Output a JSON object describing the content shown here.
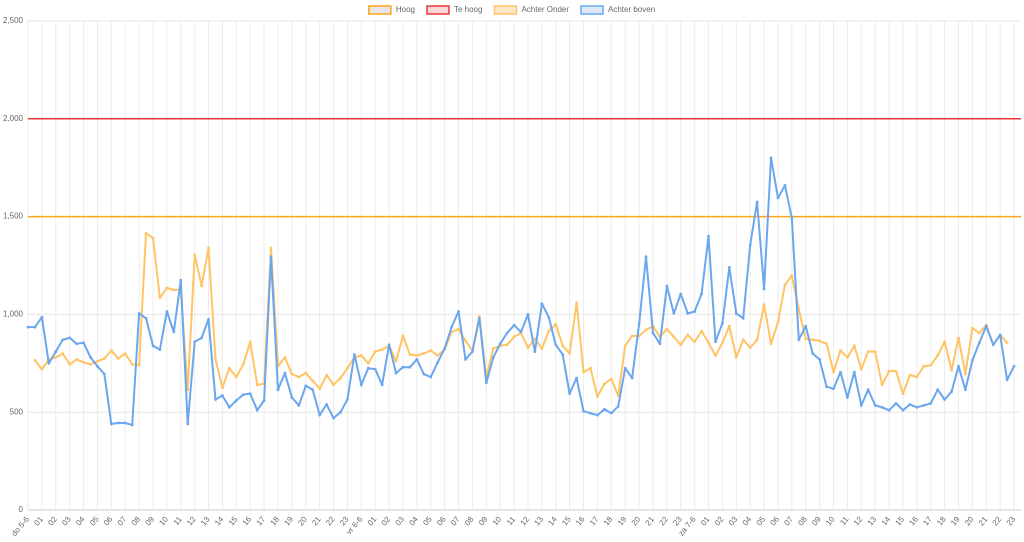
{
  "chart_data": {
    "type": "line",
    "legend": "top",
    "grid": true,
    "categories": [
      "do 5-6",
      null,
      "01",
      null,
      "02",
      null,
      "03",
      null,
      "04",
      null,
      "05",
      null,
      "06",
      null,
      "07",
      null,
      "08",
      null,
      "09",
      null,
      "10",
      null,
      "11",
      null,
      "12",
      null,
      "13",
      null,
      "14",
      null,
      "15",
      null,
      "16",
      null,
      "17",
      null,
      "18",
      null,
      "19",
      null,
      "20",
      null,
      "21",
      null,
      "22",
      null,
      "23",
      null,
      "vr 6-6",
      null,
      "01",
      null,
      "02",
      null,
      "03",
      null,
      "04",
      null,
      "05",
      null,
      "06",
      null,
      "07",
      null,
      "08",
      null,
      "09",
      null,
      "10",
      null,
      "11",
      null,
      "12",
      null,
      "13",
      null,
      "14",
      null,
      "15",
      null,
      "16",
      null,
      "17",
      null,
      "18",
      null,
      "19",
      null,
      "20",
      null,
      "21",
      null,
      "22",
      null,
      "23",
      null,
      "za 7-6",
      null,
      "01",
      null,
      "02",
      null,
      "03",
      null,
      "04",
      null,
      "05",
      null,
      "06",
      null,
      "07",
      null,
      "08",
      null,
      "09",
      null,
      "10",
      null,
      "11",
      null,
      "12",
      null,
      "13",
      null,
      "14",
      null,
      "15",
      null,
      "16",
      null,
      "17",
      null,
      "18",
      null,
      "19",
      null,
      "20",
      null,
      "21",
      null,
      "22",
      null,
      "23",
      null
    ],
    "thresholds": [
      {
        "name": "Hoog",
        "value": 1500,
        "color": "#ffa31a",
        "fill": "#e6e6e6"
      },
      {
        "name": "Te hoog",
        "value": 2000,
        "color": "#e8363b",
        "fill": "#f9d6d8"
      }
    ],
    "series": [
      {
        "name": "Achter Onder",
        "color": "#ffc466",
        "fill": "#fde9c8",
        "values": [
          null,
          765,
          720,
          770,
          780,
          800,
          745,
          770,
          755,
          745,
          760,
          775,
          815,
          775,
          800,
          745,
          740,
          1415,
          1390,
          1085,
          1135,
          1125,
          1125,
          615,
          1305,
          1145,
          1340,
          770,
          625,
          725,
          680,
          745,
          860,
          640,
          645,
          1340,
          735,
          780,
          695,
          680,
          700,
          660,
          620,
          690,
          640,
          675,
          725,
          780,
          790,
          750,
          810,
          820,
          840,
          760,
          890,
          795,
          790,
          800,
          815,
          790,
          820,
          910,
          925,
          865,
          815,
          990,
          680,
          825,
          840,
          845,
          885,
          905,
          830,
          875,
          825,
          915,
          950,
          840,
          800,
          1060,
          705,
          725,
          580,
          645,
          670,
          585,
          840,
          890,
          890,
          920,
          940,
          885,
          925,
          885,
          845,
          895,
          860,
          915,
          855,
          790,
          855,
          940,
          780,
          870,
          830,
          870,
          1050,
          850,
          960,
          1150,
          1200,
          1025,
          875,
          870,
          865,
          850,
          705,
          815,
          780,
          840,
          720,
          810,
          810,
          640,
          710,
          710,
          595,
          690,
          680,
          735,
          740,
          790,
          860,
          715,
          880,
          695,
          930,
          905,
          945,
          845,
          895,
          855,
          null,
          null
        ]
      },
      {
        "name": "Achter boven",
        "color": "#6aa7ee",
        "fill": "#dbe9fb",
        "values": [
          935,
          935,
          985,
          750,
          810,
          870,
          880,
          850,
          855,
          780,
          735,
          695,
          440,
          445,
          445,
          435,
          1005,
          980,
          840,
          820,
          1015,
          910,
          1175,
          440,
          860,
          880,
          975,
          565,
          585,
          525,
          560,
          590,
          595,
          510,
          560,
          1295,
          615,
          700,
          575,
          535,
          635,
          615,
          485,
          540,
          470,
          500,
          565,
          795,
          640,
          725,
          720,
          640,
          845,
          700,
          730,
          730,
          770,
          695,
          680,
          755,
          825,
          935,
          1015,
          770,
          810,
          980,
          650,
          780,
          850,
          905,
          945,
          910,
          1000,
          810,
          1055,
          985,
          845,
          795,
          595,
          675,
          505,
          495,
          485,
          515,
          495,
          530,
          725,
          675,
          950,
          1295,
          905,
          850,
          1145,
          1005,
          1105,
          1005,
          1015,
          1105,
          1400,
          860,
          955,
          1240,
          1005,
          980,
          1355,
          1575,
          1130,
          1800,
          1595,
          1660,
          1495,
          870,
          940,
          800,
          770,
          630,
          620,
          705,
          575,
          705,
          535,
          615,
          535,
          525,
          510,
          545,
          510,
          540,
          525,
          535,
          545,
          615,
          565,
          605,
          735,
          615,
          765,
          855,
          940,
          845,
          895,
          665,
          735,
          null
        ]
      }
    ],
    "ylim": [
      0,
      2500
    ],
    "yticks": [
      0,
      500,
      {
        "value": 1000,
        "label": "1,000"
      },
      {
        "value": 1500,
        "label": "1,500"
      },
      {
        "value": 2000,
        "label": "2,000"
      },
      {
        "value": 2500,
        "label": "2,500"
      }
    ]
  }
}
